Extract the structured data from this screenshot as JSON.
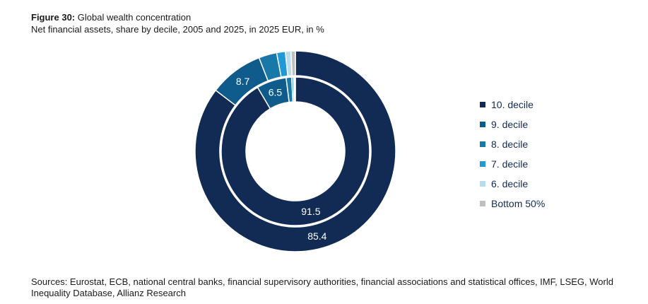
{
  "header": {
    "figure_label": "Figure 30:",
    "title": "Global wealth concentration",
    "subtitle": "Net financial assets, share by decile, 2005 and 2025, in 2025 EUR, in %"
  },
  "chart_data": {
    "type": "pie",
    "variant": "nested-donut",
    "categories": [
      "10. decile",
      "9. decile",
      "8. decile",
      "7. decile",
      "6. decile",
      "Bottom 50%"
    ],
    "colors": [
      "#122b55",
      "#0f5c8c",
      "#1878a8",
      "#1f9ad6",
      "#b8dcef",
      "#bfbfbf"
    ],
    "series": [
      {
        "ring": "outer",
        "values": [
          85.4,
          8.7,
          2.9,
          1.4,
          0.9,
          0.7
        ],
        "labels": [
          "85.4",
          "8.7",
          "",
          "",
          "",
          ""
        ]
      },
      {
        "ring": "inner",
        "values": [
          91.5,
          6.5,
          1.2,
          0.4,
          0.2,
          0.2
        ],
        "labels": [
          "91.5",
          "6.5",
          "",
          "",
          "",
          ""
        ]
      }
    ],
    "legend_position": "right"
  },
  "legend": {
    "items": [
      {
        "label": "10. decile",
        "color": "#122b55"
      },
      {
        "label": "9. decile",
        "color": "#0f5c8c"
      },
      {
        "label": "8. decile",
        "color": "#1878a8"
      },
      {
        "label": "7. decile",
        "color": "#1f9ad6"
      },
      {
        "label": "6. decile",
        "color": "#b8dcef"
      },
      {
        "label": "Bottom 50%",
        "color": "#bfbfbf"
      }
    ]
  },
  "footer": {
    "sources": "Sources: Eurostat, ECB, national central banks, financial supervisory authorities, financial associations and statistical offices, IMF, LSEG, World Inequality Database, Allianz Research"
  }
}
